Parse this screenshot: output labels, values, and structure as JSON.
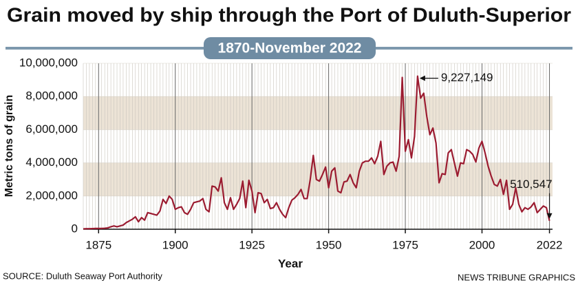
{
  "chart_data": {
    "type": "line",
    "title": "Grain moved by ship through the Port of Duluth-Superior",
    "subtitle": "1870-November 2022",
    "x_label": "Year",
    "y_label": "Metric tons of grain",
    "source": "SOURCE: Duluth Seaway Port Authority",
    "credit": "NEWS TRIBUNE GRAPHICS",
    "x": [
      1870,
      1871,
      1872,
      1873,
      1874,
      1875,
      1876,
      1877,
      1878,
      1879,
      1880,
      1881,
      1882,
      1883,
      1884,
      1885,
      1886,
      1887,
      1888,
      1889,
      1890,
      1891,
      1892,
      1893,
      1894,
      1895,
      1896,
      1897,
      1898,
      1899,
      1900,
      1901,
      1902,
      1903,
      1904,
      1905,
      1906,
      1907,
      1908,
      1909,
      1910,
      1911,
      1912,
      1913,
      1914,
      1915,
      1916,
      1917,
      1918,
      1919,
      1920,
      1921,
      1922,
      1923,
      1924,
      1925,
      1926,
      1927,
      1928,
      1929,
      1930,
      1931,
      1932,
      1933,
      1934,
      1935,
      1936,
      1937,
      1938,
      1939,
      1940,
      1941,
      1942,
      1943,
      1944,
      1945,
      1946,
      1947,
      1948,
      1949,
      1950,
      1951,
      1952,
      1953,
      1954,
      1955,
      1956,
      1957,
      1958,
      1959,
      1960,
      1961,
      1962,
      1963,
      1964,
      1965,
      1966,
      1967,
      1968,
      1969,
      1970,
      1971,
      1972,
      1973,
      1974,
      1975,
      1976,
      1977,
      1978,
      1979,
      1980,
      1981,
      1982,
      1983,
      1984,
      1985,
      1986,
      1987,
      1988,
      1989,
      1990,
      1991,
      1992,
      1993,
      1994,
      1995,
      1996,
      1997,
      1998,
      1999,
      2000,
      2001,
      2002,
      2003,
      2004,
      2005,
      2006,
      2007,
      2008,
      2009,
      2010,
      2011,
      2012,
      2013,
      2014,
      2015,
      2016,
      2017,
      2018,
      2019,
      2020,
      2021,
      2022
    ],
    "series": [
      {
        "name": "Metric tons of grain",
        "color": "#9b1b30",
        "values": [
          20000,
          30000,
          30000,
          40000,
          50000,
          50000,
          50000,
          60000,
          80000,
          150000,
          200000,
          150000,
          200000,
          250000,
          400000,
          500000,
          600000,
          750000,
          450000,
          700000,
          550000,
          1000000,
          950000,
          900000,
          850000,
          1100000,
          1800000,
          1550000,
          2000000,
          1800000,
          1200000,
          1300000,
          1350000,
          1000000,
          900000,
          1200000,
          1600000,
          1650000,
          1700000,
          1850000,
          1200000,
          1050000,
          2600000,
          2550000,
          2300000,
          3100000,
          1600000,
          1200000,
          1900000,
          1200000,
          1500000,
          1850000,
          2900000,
          1300000,
          2950000,
          2300000,
          1000000,
          2200000,
          2150000,
          1600000,
          1800000,
          1250000,
          1300000,
          1600000,
          1200000,
          900000,
          700000,
          1300000,
          1750000,
          1900000,
          2100000,
          2400000,
          1850000,
          1850000,
          3000000,
          4450000,
          3000000,
          2900000,
          3300000,
          3750000,
          2500000,
          3500000,
          3700000,
          2300000,
          2200000,
          2850000,
          2900000,
          3300000,
          2800000,
          2500000,
          3500000,
          4000000,
          4100000,
          4100000,
          4300000,
          3950000,
          4400000,
          5300000,
          3300000,
          3800000,
          4000000,
          4050000,
          3500000,
          4400000,
          9150000,
          4700000,
          5400000,
          4300000,
          5600000,
          9227149,
          7900000,
          8200000,
          6800000,
          5700000,
          6100000,
          5200000,
          2800000,
          3350000,
          3300000,
          4600000,
          4800000,
          4000000,
          3200000,
          4000000,
          3950000,
          4800000,
          4700000,
          4500000,
          4050000,
          4900000,
          5300000,
          4600000,
          3800000,
          3200000,
          2700000,
          2600000,
          3000000,
          2100000,
          2950000,
          1200000,
          1500000,
          2500000,
          1500000,
          1050000,
          1300000,
          1200000,
          1350000,
          1600000,
          1000000,
          1200000,
          1400000,
          1300000,
          510547
        ],
        "value_labels": [
          null,
          null,
          null,
          null,
          null,
          null,
          null,
          null,
          null,
          null,
          null,
          null,
          null,
          null,
          null,
          null,
          null,
          null,
          null,
          null,
          null,
          null,
          null,
          null,
          null,
          null,
          null,
          null,
          null,
          null,
          null,
          null,
          null,
          null,
          null,
          null,
          null,
          null,
          null,
          null,
          null,
          null,
          null,
          null,
          null,
          null,
          null,
          null,
          null,
          null,
          null,
          null,
          null,
          null,
          null,
          null,
          null,
          null,
          null,
          null,
          null,
          null,
          null,
          null,
          null,
          null,
          null,
          null,
          null,
          null,
          null,
          null,
          null,
          null,
          null,
          null,
          null,
          null,
          null,
          null,
          null,
          null,
          null,
          null,
          null,
          null,
          null,
          null,
          null,
          null,
          null,
          null,
          null,
          null,
          null,
          null,
          null,
          null,
          null,
          null,
          null,
          null,
          null,
          null,
          null,
          null,
          null,
          null,
          null,
          "9,227,149",
          null,
          null,
          null,
          null,
          null,
          null,
          null,
          null,
          null,
          null,
          null,
          null,
          null,
          null,
          null,
          null,
          null,
          null,
          null,
          null,
          null,
          null,
          null,
          null,
          null,
          null,
          null,
          null,
          null,
          null,
          null,
          null,
          null,
          null,
          null,
          null,
          null,
          null,
          null,
          null,
          null,
          null,
          "510,547"
        ]
      }
    ],
    "xlim": [
      1870,
      2023
    ],
    "xticks": [
      1875,
      1900,
      1925,
      1950,
      1975,
      2000,
      2022
    ],
    "ylim": [
      0,
      10000000
    ],
    "yticks": [
      0,
      {
        "value": 2000000,
        "label": "2,000,000"
      },
      {
        "value": 4000000,
        "label": "4,000,000"
      },
      {
        "value": 6000000,
        "label": "6,000,000"
      },
      {
        "value": 8000000,
        "label": "8,000,000"
      },
      {
        "value": 10000000,
        "label": "10,000,000"
      }
    ],
    "grid": true
  }
}
